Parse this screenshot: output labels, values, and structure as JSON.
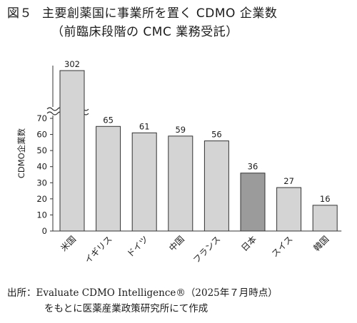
{
  "figure": {
    "number": "図５",
    "title_line1": "主要創薬国に事業所を置く CDMO 企業数",
    "title_line2": "（前臨床段階の CMC 業務受託）"
  },
  "source": {
    "line1": "出所：Evaluate CDMO Intelligence®（2025年７月時点）",
    "line2": "をもとに医薬産業政策研究所にて作成"
  },
  "chart_data": {
    "type": "bar",
    "categories": [
      "米国",
      "イギリス",
      "ドイツ",
      "中国",
      "フランス",
      "日本",
      "スイス",
      "韓国"
    ],
    "values": [
      302,
      65,
      61,
      59,
      56,
      36,
      27,
      16
    ],
    "ylabel": "CDMO企業数",
    "yticks": [
      0,
      10,
      20,
      30,
      40,
      50,
      60,
      70
    ],
    "ylim": [
      0,
      70
    ],
    "axis_break": true,
    "grid": false,
    "colors": {
      "bar": "#d4d4d4",
      "highlight_bar": "#9b9b9b",
      "outline": "#333333"
    },
    "highlight_category": "日本"
  }
}
